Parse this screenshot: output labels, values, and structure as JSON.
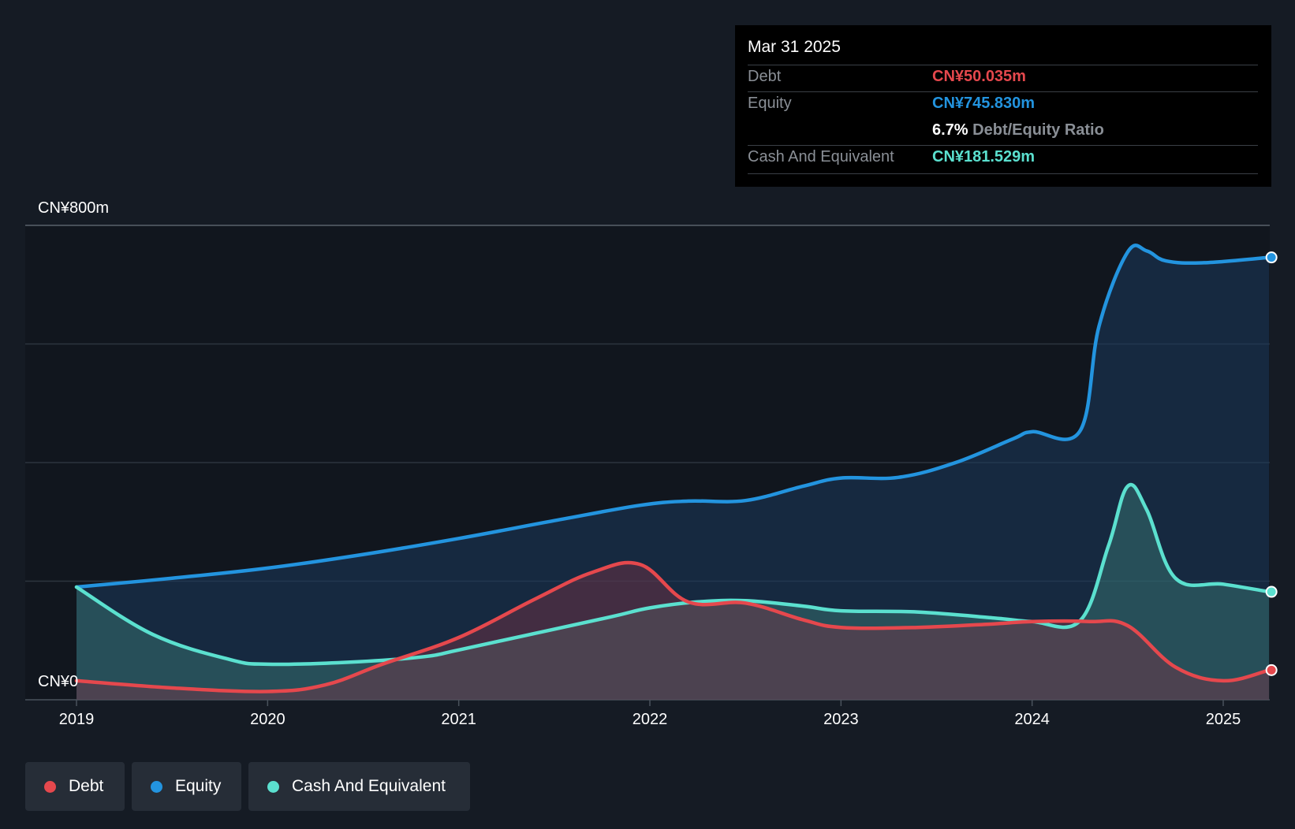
{
  "chart_data": {
    "type": "area",
    "title": "",
    "xlabel": "",
    "ylabel": "",
    "ylim": [
      0,
      800
    ],
    "y_unit_label_top": "CN¥800m",
    "y_unit_label_bottom": "CN¥0",
    "x_ticks": [
      "2019",
      "2020",
      "2021",
      "2022",
      "2023",
      "2024",
      "2025"
    ],
    "grid": true,
    "series": [
      {
        "name": "Equity",
        "color": "#2394df",
        "points": [
          [
            2019.0,
            190
          ],
          [
            2019.5,
            205
          ],
          [
            2020.0,
            222
          ],
          [
            2020.5,
            245
          ],
          [
            2021.0,
            272
          ],
          [
            2021.5,
            302
          ],
          [
            2021.95,
            328
          ],
          [
            2022.2,
            335
          ],
          [
            2022.5,
            336
          ],
          [
            2022.8,
            360
          ],
          [
            2023.0,
            374
          ],
          [
            2023.3,
            375
          ],
          [
            2023.6,
            400
          ],
          [
            2023.9,
            440
          ],
          [
            2024.0,
            452
          ],
          [
            2024.25,
            453
          ],
          [
            2024.35,
            630
          ],
          [
            2024.5,
            755
          ],
          [
            2024.6,
            757
          ],
          [
            2024.7,
            740
          ],
          [
            2024.9,
            737
          ],
          [
            2025.24,
            746
          ]
        ]
      },
      {
        "name": "Cash And Equivalent",
        "color": "#5be0cf",
        "points": [
          [
            2019.0,
            190
          ],
          [
            2019.4,
            110
          ],
          [
            2019.8,
            68
          ],
          [
            2020.0,
            60
          ],
          [
            2020.4,
            63
          ],
          [
            2020.8,
            72
          ],
          [
            2021.0,
            84
          ],
          [
            2021.4,
            112
          ],
          [
            2021.8,
            140
          ],
          [
            2022.0,
            155
          ],
          [
            2022.25,
            165
          ],
          [
            2022.5,
            167
          ],
          [
            2022.8,
            158
          ],
          [
            2023.0,
            150
          ],
          [
            2023.4,
            148
          ],
          [
            2023.8,
            138
          ],
          [
            2024.0,
            132
          ],
          [
            2024.25,
            133
          ],
          [
            2024.4,
            260
          ],
          [
            2024.5,
            360
          ],
          [
            2024.6,
            320
          ],
          [
            2024.75,
            205
          ],
          [
            2025.0,
            195
          ],
          [
            2025.24,
            182
          ]
        ]
      },
      {
        "name": "Debt",
        "color": "#e5484d",
        "points": [
          [
            2019.0,
            32
          ],
          [
            2019.5,
            20
          ],
          [
            2020.0,
            14
          ],
          [
            2020.3,
            25
          ],
          [
            2020.6,
            60
          ],
          [
            2021.0,
            105
          ],
          [
            2021.4,
            170
          ],
          [
            2021.7,
            215
          ],
          [
            2021.95,
            228
          ],
          [
            2022.2,
            165
          ],
          [
            2022.5,
            163
          ],
          [
            2022.8,
            135
          ],
          [
            2023.0,
            122
          ],
          [
            2023.4,
            122
          ],
          [
            2023.8,
            128
          ],
          [
            2024.0,
            132
          ],
          [
            2024.3,
            132
          ],
          [
            2024.5,
            125
          ],
          [
            2024.75,
            55
          ],
          [
            2025.0,
            32
          ],
          [
            2025.24,
            50
          ]
        ]
      }
    ]
  },
  "tooltip": {
    "date": "Mar 31 2025",
    "debt_label": "Debt",
    "debt_value": "CN¥50.035m",
    "equity_label": "Equity",
    "equity_value": "CN¥745.830m",
    "ratio_value": "6.7%",
    "ratio_label": "Debt/Equity Ratio",
    "cash_label": "Cash And Equivalent",
    "cash_value": "CN¥181.529m"
  },
  "legend": {
    "debt": "Debt",
    "equity": "Equity",
    "cash": "Cash And Equivalent"
  },
  "colors": {
    "debt": "#e5484d",
    "equity": "#2394df",
    "cash": "#5be0cf"
  }
}
